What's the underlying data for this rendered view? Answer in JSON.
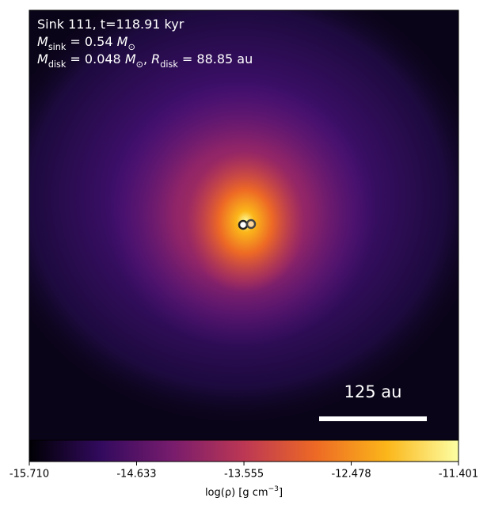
{
  "chart_data": {
    "type": "density-map",
    "title_lines": [
      [
        {
          "text": "Sink 111, t=118.91 kyr"
        }
      ],
      [
        {
          "text": "M",
          "italic": true
        },
        {
          "text": "sink",
          "sub": true
        },
        {
          "text": " = 0.54 "
        },
        {
          "text": "M",
          "italic": true
        },
        {
          "text": "⊙",
          "sub": true
        }
      ],
      [
        {
          "text": "M",
          "italic": true
        },
        {
          "text": "disk",
          "sub": true
        },
        {
          "text": " = 0.048 "
        },
        {
          "text": "M",
          "italic": true
        },
        {
          "text": "⊙",
          "sub": true
        },
        {
          "text": ", "
        },
        {
          "text": "R",
          "italic": true
        },
        {
          "text": "disk",
          "sub": true
        },
        {
          "text": " = 88.85 au"
        }
      ]
    ],
    "scale_bar_label": "125 au",
    "colorbar_label": [
      {
        "text": "log(ρ) [g cm"
      },
      {
        "text": "−3",
        "sup": true
      },
      {
        "text": "]"
      }
    ],
    "colormap": [
      "#000004",
      "#320a5e",
      "#781c6d",
      "#bc3754",
      "#ed6925",
      "#fbb61a",
      "#fcffa4"
    ],
    "clim": [
      -15.71,
      -11.401
    ],
    "cticks": [
      {
        "value": -15.71,
        "label": "-15.710"
      },
      -14.633,
      -13.555,
      -12.478,
      -11.401
    ]
  }
}
